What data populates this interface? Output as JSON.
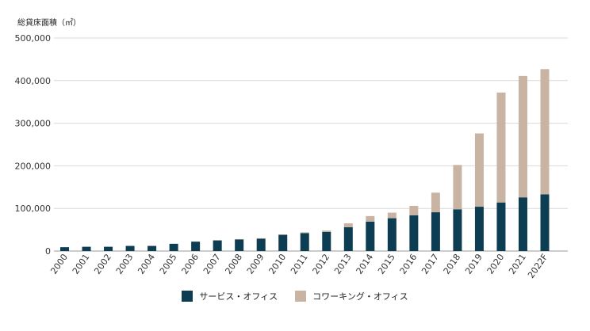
{
  "chart_data": {
    "type": "bar",
    "stacked": true,
    "ylabel": "総貸床面積（㎡）",
    "ylim": [
      0,
      500000
    ],
    "yticks": [
      "0",
      "100,000",
      "200,000",
      "300,000",
      "400,000",
      "500,000"
    ],
    "ytick_values": [
      0,
      100000,
      200000,
      300000,
      400000,
      500000
    ],
    "grid": true,
    "legend_position": "bottom",
    "categories": [
      "2000",
      "2001",
      "2002",
      "2003",
      "2004",
      "2005",
      "2006",
      "2007",
      "2008",
      "2009",
      "2010",
      "2011",
      "2012",
      "2013",
      "2014",
      "2015",
      "2016",
      "2017",
      "2018",
      "2019",
      "2020",
      "2021",
      "2022F"
    ],
    "series": [
      {
        "name": "サービス・オフィス",
        "color": "#0d3d52",
        "values": [
          9000,
          10000,
          10000,
          12000,
          12000,
          17000,
          22000,
          25000,
          27000,
          29000,
          38000,
          42000,
          45000,
          56000,
          69000,
          77000,
          84000,
          91000,
          98000,
          104000,
          114000,
          126000,
          133000
        ]
      },
      {
        "name": "コワーキング・オフィス",
        "color": "#c9b3a3",
        "values": [
          0,
          0,
          0,
          0,
          0,
          0,
          0,
          0,
          1000,
          1000,
          1000,
          2000,
          3000,
          9000,
          13000,
          13000,
          22000,
          46000,
          104000,
          172000,
          258000,
          285000,
          294000
        ]
      }
    ]
  }
}
